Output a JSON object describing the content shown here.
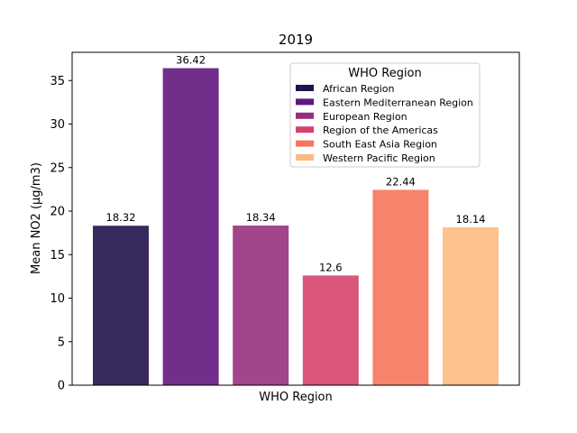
{
  "chart_data": {
    "type": "bar",
    "title": "2019",
    "xlabel": "WHO Region",
    "ylabel": "Mean NO2 (μg/m3)",
    "ylim": [
      0,
      38.24
    ],
    "yticks": [
      0,
      5,
      10,
      15,
      20,
      25,
      30,
      35
    ],
    "categories": [
      "African Region",
      "Eastern Mediterranean Region",
      "European Region",
      "Region of the Americas",
      "South East Asia Region",
      "Western Pacific Region"
    ],
    "values": [
      18.32,
      36.42,
      18.34,
      12.6,
      22.44,
      18.14
    ],
    "data_labels": [
      "18.32",
      "36.42",
      "18.34",
      "12.6",
      "22.44",
      "18.14"
    ],
    "colors": [
      "#382a5e",
      "#712e8a",
      "#a3458a",
      "#d9557a",
      "#f8836c",
      "#fec28c"
    ],
    "legend": {
      "title": "WHO Region",
      "placement": "top-right",
      "swatch_colors": [
        "#221150",
        "#5f187f",
        "#982d80",
        "#d3436e",
        "#f8765c",
        "#febb81"
      ]
    },
    "grid": false
  }
}
